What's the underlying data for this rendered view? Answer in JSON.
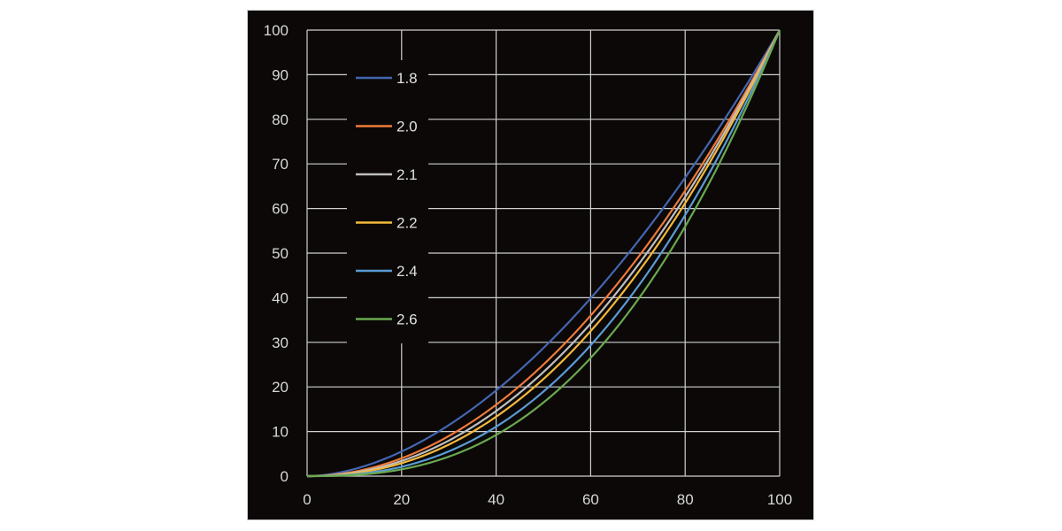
{
  "chart_data": {
    "type": "line",
    "x_range": [
      0,
      100
    ],
    "y_range": [
      0,
      100
    ],
    "x_ticks": [
      0,
      20,
      40,
      60,
      80,
      100
    ],
    "y_ticks": [
      0,
      10,
      20,
      30,
      40,
      50,
      60,
      70,
      80,
      90,
      100
    ],
    "grid": true,
    "legend_position": "top-left",
    "background_color": "#0b0807",
    "series": [
      {
        "name": "1.8",
        "gamma": 1.8,
        "color": "#4466b0"
      },
      {
        "name": "2.0",
        "gamma": 2.0,
        "color": "#ee7a3a"
      },
      {
        "name": "2.1",
        "gamma": 2.1,
        "color": "#bfbfbf"
      },
      {
        "name": "2.2",
        "gamma": 2.2,
        "color": "#f2b93b"
      },
      {
        "name": "2.4",
        "gamma": 2.4,
        "color": "#5a9bd5"
      },
      {
        "name": "2.6",
        "gamma": 2.6,
        "color": "#6aa94f"
      }
    ]
  }
}
